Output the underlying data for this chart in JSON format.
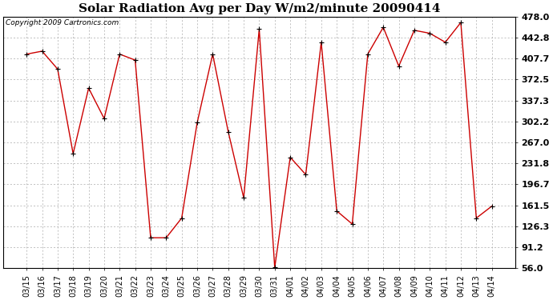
{
  "title": "Solar Radiation Avg per Day W/m2/minute 20090414",
  "copyright": "Copyright 2009 Cartronics.com",
  "labels": [
    "03/15",
    "03/16",
    "03/17",
    "03/18",
    "03/19",
    "03/20",
    "03/21",
    "03/22",
    "03/23",
    "03/24",
    "03/25",
    "03/26",
    "03/27",
    "03/28",
    "03/29",
    "03/30",
    "03/31",
    "04/01",
    "04/02",
    "04/03",
    "04/04",
    "04/05",
    "04/06",
    "04/07",
    "04/08",
    "04/09",
    "04/10",
    "04/11",
    "04/12",
    "04/13",
    "04/14"
  ],
  "values": [
    415.0,
    420.0,
    390.0,
    248.0,
    358.0,
    307.0,
    415.0,
    405.0,
    107.0,
    107.0,
    140.0,
    300.0,
    415.0,
    285.0,
    174.0,
    457.0,
    57.0,
    242.0,
    213.0,
    435.0,
    152.0,
    130.0,
    415.0,
    460.0,
    395.0,
    455.0,
    450.0,
    435.0,
    468.0,
    140.0,
    160.0
  ],
  "line_color": "#cc0000",
  "marker": "+",
  "grid_color": "#aaaaaa",
  "background_color": "#ffffff",
  "ymin": 56.0,
  "ymax": 478.0,
  "yticks": [
    56.0,
    91.2,
    126.3,
    161.5,
    196.7,
    231.8,
    267.0,
    302.2,
    337.3,
    372.5,
    407.7,
    442.8,
    478.0
  ],
  "title_fontsize": 11,
  "copyright_fontsize": 6.5,
  "tick_fontsize": 7,
  "ytick_fontsize": 8
}
